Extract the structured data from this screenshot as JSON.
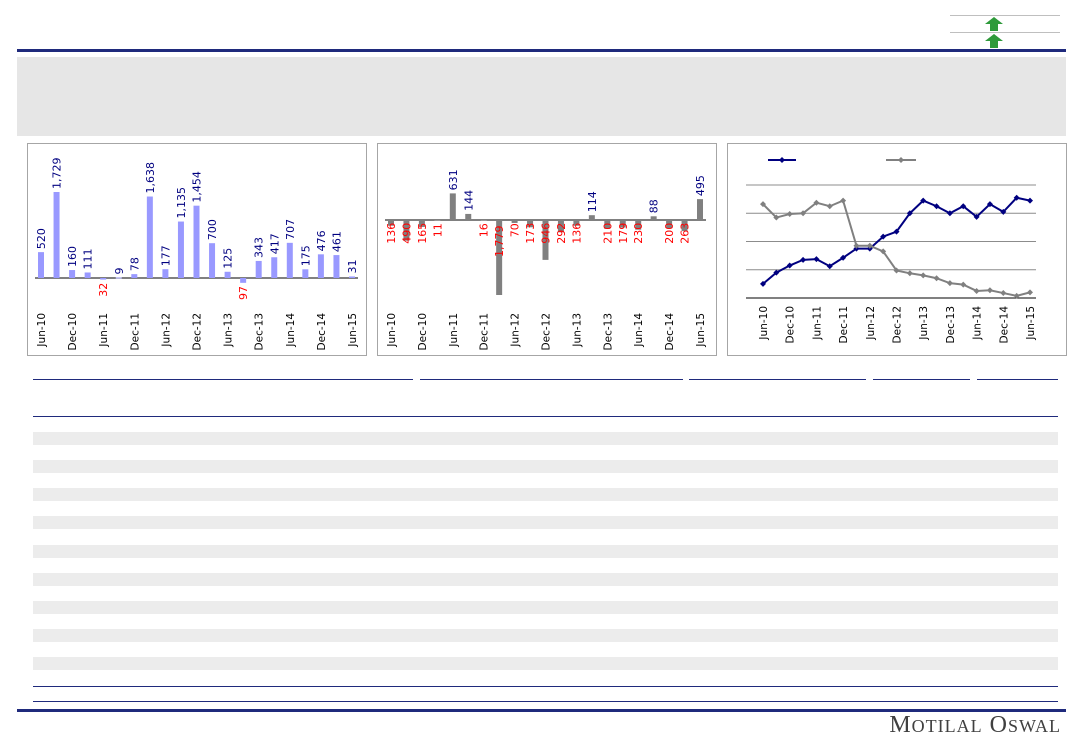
{
  "brand": {
    "first_initial": "M",
    "first_rest": "OTILAL",
    "second_initial": "O",
    "second_rest": "SWAL"
  },
  "colors": {
    "navy": "#1f2a7c",
    "bar_blue": "#9999ff",
    "bar_gray": "#808080",
    "negative": "#ff0000",
    "label_navy": "#000080",
    "line_navy": "#000080",
    "line_gray": "#808080",
    "arrow_green": "#2e9a3a",
    "banner": "#e6e6e6"
  },
  "icons": {
    "arrow_1": "green-up-arrow-icon",
    "arrow_2": "green-up-arrow-icon"
  },
  "chart_data": [
    {
      "type": "bar",
      "categories": [
        "Jun-10",
        "Sep-10",
        "Dec-10",
        "Mar-11",
        "Jun-11",
        "Sep-11",
        "Dec-11",
        "Mar-12",
        "Jun-12",
        "Sep-12",
        "Dec-12",
        "Mar-13",
        "Jun-13",
        "Sep-13",
        "Dec-13",
        "Mar-14",
        "Jun-14",
        "Sep-14",
        "Dec-14",
        "Mar-15",
        "Jun-15"
      ],
      "tick_labels": [
        "Jun-10",
        "Dec-10",
        "Jun-11",
        "Dec-11",
        "Jun-12",
        "Dec-12",
        "Jun-13",
        "Dec-13",
        "Jun-14",
        "Dec-14",
        "Jun-15"
      ],
      "values": [
        520,
        1729,
        160,
        111,
        -32,
        9,
        78,
        1638,
        177,
        1135,
        1454,
        700,
        125,
        -97,
        343,
        417,
        707,
        175,
        476,
        461,
        31
      ],
      "data_labels": [
        "520",
        "1,729",
        "160",
        "111",
        "32",
        "9",
        "78",
        "1,638",
        "177",
        "1,135",
        "1,454",
        "700",
        "125",
        "97",
        "343",
        "417",
        "707",
        "175",
        "476",
        "461",
        "31"
      ],
      "ylim": [
        -300,
        1900
      ]
    },
    {
      "type": "bar",
      "categories": [
        "Jun-10",
        "Sep-10",
        "Dec-10",
        "Mar-11",
        "Jun-11",
        "Sep-11",
        "Dec-11",
        "Mar-12",
        "Jun-12",
        "Sep-12",
        "Dec-12",
        "Mar-13",
        "Jun-13",
        "Sep-13",
        "Dec-13",
        "Mar-14",
        "Jun-14",
        "Sep-14",
        "Dec-14",
        "Mar-15",
        "Jun-15"
      ],
      "tick_labels": [
        "Jun-10",
        "Dec-10",
        "Jun-11",
        "Dec-11",
        "Jun-12",
        "Dec-12",
        "Jun-13",
        "Dec-13",
        "Jun-14",
        "Dec-14",
        "Jun-15"
      ],
      "values": [
        -136,
        -490,
        -165,
        -11,
        631,
        144,
        -16,
        -1779,
        -70,
        -173,
        -946,
        -292,
        -136,
        114,
        -210,
        -179,
        -230,
        88,
        -200,
        -263,
        495
      ],
      "data_labels": [
        "136",
        "490",
        "165",
        "11",
        "631",
        "144",
        "16",
        "1,779",
        "70",
        "173",
        "946",
        "292",
        "136",
        "114",
        "210",
        "179",
        "230",
        "88",
        "200",
        "263",
        "495"
      ],
      "ylim": [
        -1900,
        1200
      ]
    },
    {
      "type": "line",
      "categories": [
        "Jun-10",
        "Sep-10",
        "Dec-10",
        "Mar-11",
        "Jun-11",
        "Sep-11",
        "Dec-11",
        "Mar-12",
        "Jun-12",
        "Sep-12",
        "Dec-12",
        "Mar-13",
        "Jun-13",
        "Sep-13",
        "Dec-13",
        "Mar-14",
        "Jun-14",
        "Sep-14",
        "Dec-14",
        "Mar-15",
        "Jun-15"
      ],
      "tick_labels": [
        "Jun-10",
        "Dec-10",
        "Jun-11",
        "Dec-11",
        "Jun-12",
        "Dec-12",
        "Jun-13",
        "Dec-13",
        "Jun-14",
        "Dec-14",
        "Jun-15"
      ],
      "series": [
        {
          "values": [
            2.0,
            3.6,
            4.6,
            5.4,
            5.5,
            4.5,
            5.7,
            7.0,
            7.0,
            8.7,
            9.4,
            12.0,
            13.8,
            13.0,
            12.0,
            13.0,
            11.5,
            13.3,
            12.2,
            14.2,
            13.8
          ],
          "color": "#000080"
        },
        {
          "values": [
            13.3,
            11.4,
            11.9,
            12.0,
            13.5,
            13.0,
            13.8,
            7.4,
            7.4,
            6.6,
            3.9,
            3.5,
            3.2,
            2.8,
            2.1,
            1.9,
            1.0,
            1.1,
            0.7,
            0.3,
            0.8
          ],
          "color": "#808080"
        }
      ],
      "ylim": [
        0,
        17
      ],
      "grid": true
    }
  ]
}
